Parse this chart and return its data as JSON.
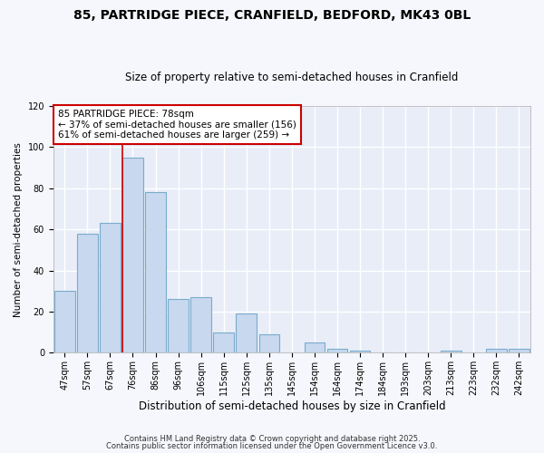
{
  "title": "85, PARTRIDGE PIECE, CRANFIELD, BEDFORD, MK43 0BL",
  "subtitle": "Size of property relative to semi-detached houses in Cranfield",
  "xlabel": "Distribution of semi-detached houses by size in Cranfield",
  "ylabel": "Number of semi-detached properties",
  "bar_labels": [
    "47sqm",
    "57sqm",
    "67sqm",
    "76sqm",
    "86sqm",
    "96sqm",
    "106sqm",
    "115sqm",
    "125sqm",
    "135sqm",
    "145sqm",
    "154sqm",
    "164sqm",
    "174sqm",
    "184sqm",
    "193sqm",
    "203sqm",
    "213sqm",
    "223sqm",
    "232sqm",
    "242sqm"
  ],
  "bar_values": [
    30,
    58,
    63,
    95,
    78,
    26,
    27,
    10,
    19,
    9,
    0,
    5,
    2,
    1,
    0,
    0,
    0,
    1,
    0,
    2,
    2
  ],
  "bar_color": "#c8d8ee",
  "bar_edgecolor": "#7aaccc",
  "highlight_line_index": 3,
  "ylim": [
    0,
    120
  ],
  "yticks": [
    0,
    20,
    40,
    60,
    80,
    100,
    120
  ],
  "annotation_title": "85 PARTRIDGE PIECE: 78sqm",
  "annotation_line1": "← 37% of semi-detached houses are smaller (156)",
  "annotation_line2": "61% of semi-detached houses are larger (259) →",
  "annotation_box_facecolor": "#ffffff",
  "annotation_box_edgecolor": "#cc0000",
  "footer1": "Contains HM Land Registry data © Crown copyright and database right 2025.",
  "footer2": "Contains public sector information licensed under the Open Government Licence v3.0.",
  "fig_facecolor": "#f5f7fc",
  "axes_facecolor": "#e8edf8",
  "grid_color": "#ffffff",
  "title_fontsize": 10,
  "subtitle_fontsize": 8.5,
  "xlabel_fontsize": 8.5,
  "ylabel_fontsize": 7.5,
  "tick_fontsize": 7,
  "annotation_fontsize": 7.5,
  "footer_fontsize": 6
}
